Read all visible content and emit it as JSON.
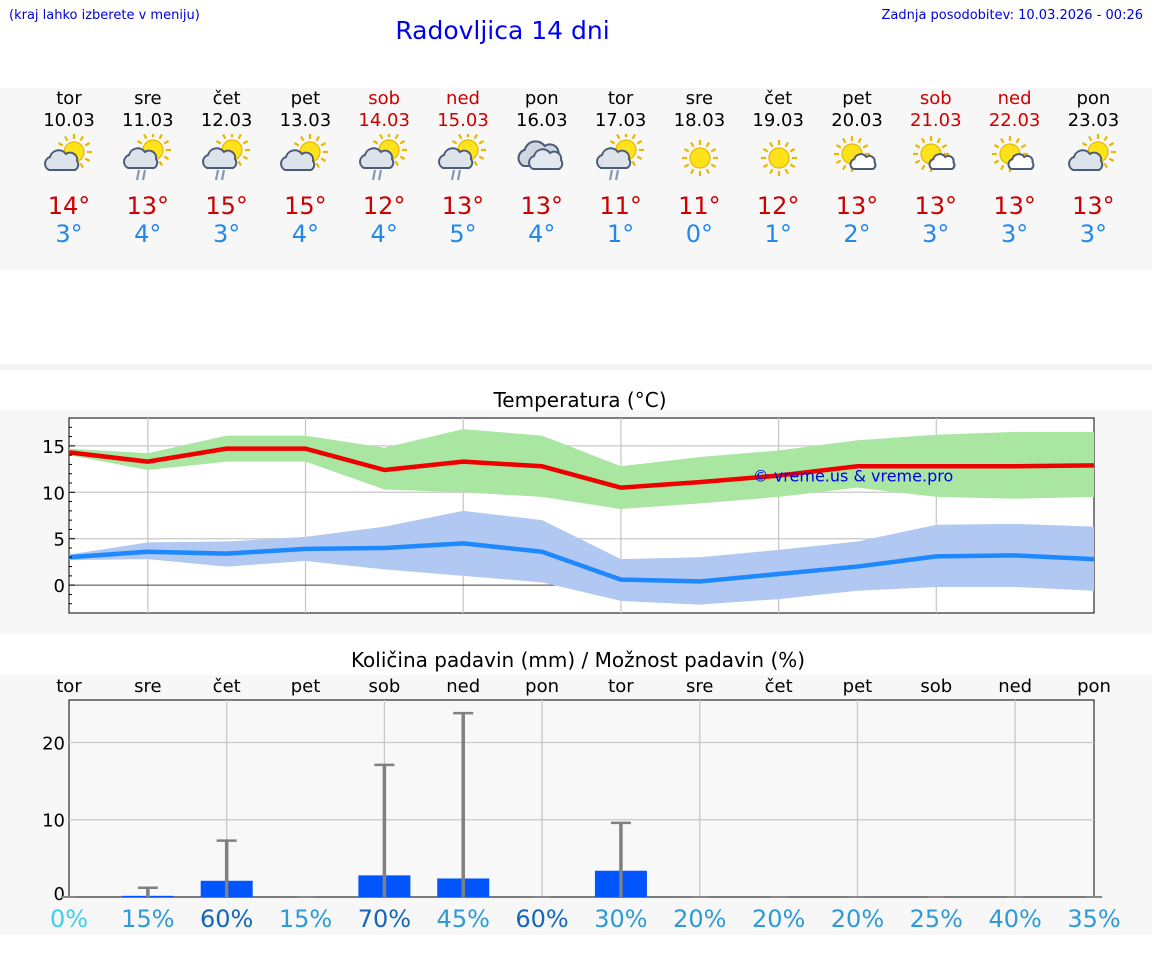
{
  "header": {
    "location_note": "(kraj lahko izberete v meniju)",
    "title": "Radovljica 14 dni",
    "updated": "Zadnja posodobitev: 10.03.2026 - 00:26"
  },
  "days": [
    {
      "name": "tor",
      "date": "10.03",
      "weekend": false,
      "icon": "sun-cloud-icon",
      "tmax": "14°",
      "tmin": "3°"
    },
    {
      "name": "sre",
      "date": "11.03",
      "weekend": false,
      "icon": "sun-cloud-rain-icon",
      "tmax": "13°",
      "tmin": "4°"
    },
    {
      "name": "čet",
      "date": "12.03",
      "weekend": false,
      "icon": "sun-cloud-rain-icon",
      "tmax": "15°",
      "tmin": "3°"
    },
    {
      "name": "pet",
      "date": "13.03",
      "weekend": false,
      "icon": "sun-cloud-icon",
      "tmax": "15°",
      "tmin": "4°"
    },
    {
      "name": "sob",
      "date": "14.03",
      "weekend": true,
      "icon": "sun-cloud-rain-icon",
      "tmax": "12°",
      "tmin": "4°"
    },
    {
      "name": "ned",
      "date": "15.03",
      "weekend": true,
      "icon": "sun-cloud-rain-icon",
      "tmax": "13°",
      "tmin": "5°"
    },
    {
      "name": "pon",
      "date": "16.03",
      "weekend": false,
      "icon": "cloud-icon",
      "tmax": "13°",
      "tmin": "4°"
    },
    {
      "name": "tor",
      "date": "17.03",
      "weekend": false,
      "icon": "sun-cloud-rain-icon",
      "tmax": "11°",
      "tmin": "1°"
    },
    {
      "name": "sre",
      "date": "18.03",
      "weekend": false,
      "icon": "sun-icon",
      "tmax": "11°",
      "tmin": "0°"
    },
    {
      "name": "čet",
      "date": "19.03",
      "weekend": false,
      "icon": "sun-icon",
      "tmax": "12°",
      "tmin": "1°"
    },
    {
      "name": "pet",
      "date": "20.03",
      "weekend": false,
      "icon": "sun-small-cloud-icon",
      "tmax": "13°",
      "tmin": "2°"
    },
    {
      "name": "sob",
      "date": "21.03",
      "weekend": true,
      "icon": "sun-small-cloud-icon",
      "tmax": "13°",
      "tmin": "3°"
    },
    {
      "name": "ned",
      "date": "22.03",
      "weekend": true,
      "icon": "sun-small-cloud-icon",
      "tmax": "13°",
      "tmin": "3°"
    },
    {
      "name": "pon",
      "date": "23.03",
      "weekend": false,
      "icon": "sun-cloud-icon",
      "tmax": "13°",
      "tmin": "3°"
    }
  ],
  "colors": {
    "max_line": "#ee0000",
    "max_band": "#a8e6a1",
    "min_line": "#1e88ff",
    "min_band": "#b0c8f2",
    "rain_bar": "#0055ff",
    "weekend": "#cc0000",
    "min_text": "#2288ee"
  },
  "chart_data": [
    {
      "type": "line",
      "title": "Temperatura (°C)",
      "watermark": "© vreme.us & vreme.pro",
      "ylim": [
        -3,
        18
      ],
      "yticks": [
        "15",
        "10",
        "5",
        "0"
      ],
      "x": [
        1,
        2,
        3,
        4,
        5,
        6,
        7,
        8,
        9,
        10,
        11,
        12,
        13,
        14
      ],
      "series": [
        {
          "name": "max",
          "values": [
            14.3,
            13.3,
            14.7,
            14.7,
            12.4,
            13.3,
            12.8,
            10.5,
            11.1,
            11.8,
            12.8,
            12.8,
            12.8,
            12.9
          ]
        },
        {
          "name": "max_band_high",
          "values": [
            14.7,
            14.2,
            16.1,
            16.1,
            14.8,
            16.8,
            16.1,
            12.8,
            13.8,
            14.5,
            15.6,
            16.2,
            16.5,
            16.5
          ]
        },
        {
          "name": "max_band_low",
          "values": [
            14.0,
            12.4,
            13.3,
            13.3,
            10.3,
            10.0,
            9.5,
            8.2,
            8.8,
            9.5,
            10.5,
            9.5,
            9.3,
            9.5
          ]
        },
        {
          "name": "min",
          "values": [
            3.0,
            3.6,
            3.4,
            3.9,
            4.0,
            4.5,
            3.6,
            0.6,
            0.4,
            1.2,
            2.0,
            3.1,
            3.2,
            2.8
          ]
        },
        {
          "name": "min_band_high",
          "values": [
            3.3,
            4.6,
            4.7,
            5.2,
            6.3,
            8.0,
            7.0,
            2.8,
            3.0,
            3.8,
            4.7,
            6.5,
            6.6,
            6.3
          ]
        },
        {
          "name": "min_band_low",
          "values": [
            2.7,
            2.8,
            2.0,
            2.6,
            1.7,
            1.0,
            0.3,
            -1.7,
            -2.1,
            -1.5,
            -0.6,
            -0.2,
            -0.2,
            -0.6
          ]
        }
      ]
    },
    {
      "type": "bar",
      "title": "Količina padavin (mm) / Možnost padavin (%)",
      "ylim": [
        0,
        25.5
      ],
      "yticks": [
        "20",
        "10",
        "0"
      ],
      "categories": [
        "tor",
        "sre",
        "čet",
        "pet",
        "sob",
        "ned",
        "pon",
        "tor",
        "sre",
        "čet",
        "pet",
        "sob",
        "ned",
        "pon"
      ],
      "values": [
        0,
        0.15,
        2.1,
        0,
        2.8,
        2.4,
        0,
        3.4,
        0,
        0,
        0,
        0,
        0,
        0
      ],
      "whisker_high": [
        0,
        1.2,
        7.3,
        0,
        17.1,
        23.8,
        0,
        9.6,
        0,
        0,
        0,
        0,
        0,
        0
      ],
      "probability": [
        "0%",
        "15%",
        "60%",
        "15%",
        "70%",
        "45%",
        "60%",
        "30%",
        "20%",
        "20%",
        "20%",
        "25%",
        "40%",
        "35%"
      ],
      "probability_colors": [
        "#3fd0e8",
        "#2e9ad6",
        "#1566b8",
        "#2e9ad6",
        "#1566b8",
        "#2e9ad6",
        "#1566b8",
        "#2e9ad6",
        "#2e9ad6",
        "#2e9ad6",
        "#2e9ad6",
        "#2e9ad6",
        "#2e9ad6",
        "#2e9ad6"
      ]
    }
  ]
}
